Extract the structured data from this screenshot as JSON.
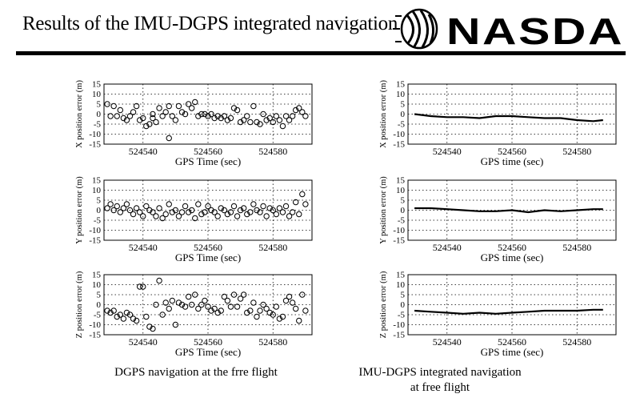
{
  "header": {
    "title": "Results of the IMU-DGPS integrated navigation",
    "logo_text": "NASDA"
  },
  "captions": {
    "left": "DGPS navigation at the frre flight",
    "right_line1": "IMU-DGPS integrated navigation",
    "right_line2": "at free flight"
  },
  "chart_data": [
    {
      "type": "scatter",
      "marker": "open-circle",
      "xlabel": "GPS Time (sec)",
      "ylabel": "X position error (m)",
      "xlim": [
        524528,
        524592
      ],
      "ylim": [
        -15,
        15
      ],
      "xticks": [
        524540,
        524560,
        524580
      ],
      "yticks": [
        15,
        10,
        5,
        0,
        -5,
        -10,
        -15
      ],
      "grid": "dotted",
      "x": [
        524529,
        524530,
        524531,
        524532,
        524533,
        524534,
        524535,
        524536,
        524537,
        524538,
        524539,
        524540,
        524541,
        524542,
        524543,
        524544,
        524545,
        524546,
        524547,
        524548,
        524549,
        524550,
        524551,
        524552,
        524553,
        524554,
        524555,
        524556,
        524557,
        524558,
        524559,
        524560,
        524561,
        524562,
        524563,
        524564,
        524565,
        524566,
        524567,
        524568,
        524569,
        524570,
        524571,
        524572,
        524573,
        524574,
        524575,
        524576,
        524577,
        524578,
        524579,
        524580,
        524581,
        524582,
        524583,
        524584,
        524585,
        524586,
        524587,
        524588,
        524589,
        524590,
        524548,
        524543
      ],
      "y": [
        5,
        -1,
        4,
        -1,
        2,
        -2,
        -3,
        -1,
        1,
        4,
        -3,
        -2,
        -6,
        -5,
        -2,
        -4,
        3,
        -1,
        1,
        4,
        -1,
        -3,
        4,
        1,
        0,
        5,
        3,
        6,
        -1,
        0,
        0,
        -1,
        0,
        -2,
        -1,
        -2,
        -1,
        -3,
        -2,
        3,
        2,
        -4,
        -3,
        -1,
        -4,
        4,
        -4,
        -5,
        0,
        -3,
        -2,
        -4,
        -1,
        -3,
        -6,
        -1,
        -3,
        -1,
        2,
        3,
        1,
        -1,
        -12,
        0
      ]
    },
    {
      "type": "line",
      "xlabel": "GPS time (sec)",
      "ylabel": "X position error (m)",
      "xlim": [
        524528,
        524592
      ],
      "ylim": [
        -15,
        15
      ],
      "xticks": [
        524540,
        524560,
        524580
      ],
      "yticks": [
        15,
        10,
        5,
        0,
        -5,
        -10,
        -15
      ],
      "grid": "dotted",
      "x": [
        524530,
        524535,
        524540,
        524545,
        524550,
        524555,
        524560,
        524565,
        524570,
        524575,
        524580,
        524585,
        524588
      ],
      "y": [
        0,
        -1,
        -1.5,
        -1.5,
        -2,
        -1,
        -1,
        -1.5,
        -2,
        -2,
        -3,
        -3.5,
        -3
      ]
    },
    {
      "type": "scatter",
      "marker": "open-circle",
      "xlabel": "GPS Time (sec)",
      "ylabel": "Y position error (m)",
      "xlim": [
        524528,
        524592
      ],
      "ylim": [
        -15,
        15
      ],
      "xticks": [
        524540,
        524560,
        524580
      ],
      "yticks": [
        15,
        10,
        5,
        0,
        -5,
        -10,
        -15
      ],
      "grid": "dotted",
      "x": [
        524529,
        524530,
        524531,
        524532,
        524533,
        524534,
        524535,
        524536,
        524537,
        524538,
        524539,
        524540,
        524541,
        524542,
        524543,
        524544,
        524545,
        524546,
        524547,
        524548,
        524549,
        524550,
        524551,
        524552,
        524553,
        524554,
        524555,
        524556,
        524557,
        524558,
        524559,
        524560,
        524561,
        524562,
        524563,
        524564,
        524565,
        524566,
        524567,
        524568,
        524569,
        524570,
        524571,
        524572,
        524573,
        524574,
        524575,
        524576,
        524577,
        524578,
        524579,
        524580,
        524581,
        524582,
        524583,
        524584,
        524585,
        524586,
        524587,
        524588,
        524589,
        524590
      ],
      "y": [
        1,
        3,
        0,
        2,
        -1,
        1,
        3,
        0,
        -2,
        1,
        -1,
        -3,
        2,
        0,
        -1,
        -3,
        1,
        -4,
        -2,
        3,
        -1,
        0,
        -3,
        -1,
        2,
        -1,
        0,
        -4,
        3,
        -2,
        -1,
        2,
        0,
        -1,
        -3,
        1,
        0,
        -2,
        -1,
        2,
        -3,
        0,
        1,
        -2,
        -1,
        3,
        0,
        -1,
        2,
        -3,
        1,
        0,
        -2,
        1,
        -1,
        2,
        -3,
        -1,
        4,
        -2,
        8,
        3
      ]
    },
    {
      "type": "line",
      "xlabel": "GPS time (sec)",
      "ylabel": "Y position error (m)",
      "xlim": [
        524528,
        524592
      ],
      "ylim": [
        -15,
        15
      ],
      "xticks": [
        524540,
        524560,
        524580
      ],
      "yticks": [
        15,
        10,
        5,
        0,
        -5,
        -10,
        -15
      ],
      "grid": "dotted",
      "x": [
        524530,
        524535,
        524540,
        524545,
        524550,
        524555,
        524560,
        524565,
        524570,
        524575,
        524580,
        524585,
        524588
      ],
      "y": [
        1,
        1,
        0.5,
        0,
        -0.5,
        -0.5,
        0,
        -1,
        0,
        -0.5,
        0,
        0.5,
        0.5
      ]
    },
    {
      "type": "scatter",
      "marker": "open-circle",
      "xlabel": "GPS Time (sec)",
      "ylabel": "Z position error (m)",
      "xlim": [
        524528,
        524592
      ],
      "ylim": [
        -15,
        15
      ],
      "xticks": [
        524540,
        524560,
        524580
      ],
      "yticks": [
        15,
        10,
        5,
        0,
        -5,
        -10,
        -15
      ],
      "grid": "dotted",
      "x": [
        524529,
        524530,
        524531,
        524532,
        524533,
        524534,
        524535,
        524536,
        524537,
        524538,
        524539,
        524540,
        524541,
        524542,
        524543,
        524544,
        524545,
        524546,
        524547,
        524548,
        524549,
        524550,
        524551,
        524552,
        524553,
        524554,
        524555,
        524556,
        524557,
        524558,
        524559,
        524560,
        524561,
        524562,
        524563,
        524564,
        524565,
        524566,
        524567,
        524568,
        524569,
        524570,
        524571,
        524572,
        524573,
        524574,
        524575,
        524576,
        524577,
        524578,
        524579,
        524580,
        524581,
        524582,
        524583,
        524584,
        524585,
        524586,
        524587,
        524588,
        524589,
        524590
      ],
      "y": [
        -3,
        -4,
        -3,
        -6,
        -5,
        -7,
        -4,
        -5,
        -7,
        -8,
        9,
        9,
        -6,
        -11,
        -12,
        0,
        12,
        -5,
        1,
        -2,
        2,
        -10,
        1,
        0,
        -1,
        4,
        0,
        5,
        -2,
        0,
        2,
        -1,
        -3,
        -2,
        -4,
        -3,
        4,
        2,
        -1,
        5,
        -1,
        3,
        5,
        -4,
        -3,
        1,
        -6,
        -3,
        0,
        -2,
        -4,
        -5,
        -1,
        -7,
        -6,
        2,
        4,
        1,
        -2,
        -8,
        5,
        -3
      ]
    },
    {
      "type": "line",
      "xlabel": "GPS time (sec)",
      "ylabel": "Z position error (m)",
      "xlim": [
        524528,
        524592
      ],
      "ylim": [
        -15,
        15
      ],
      "xticks": [
        524540,
        524560,
        524580
      ],
      "yticks": [
        15,
        10,
        5,
        0,
        -5,
        -10,
        -15
      ],
      "grid": "dotted",
      "x": [
        524530,
        524535,
        524540,
        524545,
        524550,
        524555,
        524560,
        524565,
        524570,
        524575,
        524580,
        524585,
        524588
      ],
      "y": [
        -3,
        -3.5,
        -4,
        -4.5,
        -4,
        -4.5,
        -4,
        -3.5,
        -3,
        -3,
        -3,
        -2.5,
        -2.5
      ]
    }
  ]
}
